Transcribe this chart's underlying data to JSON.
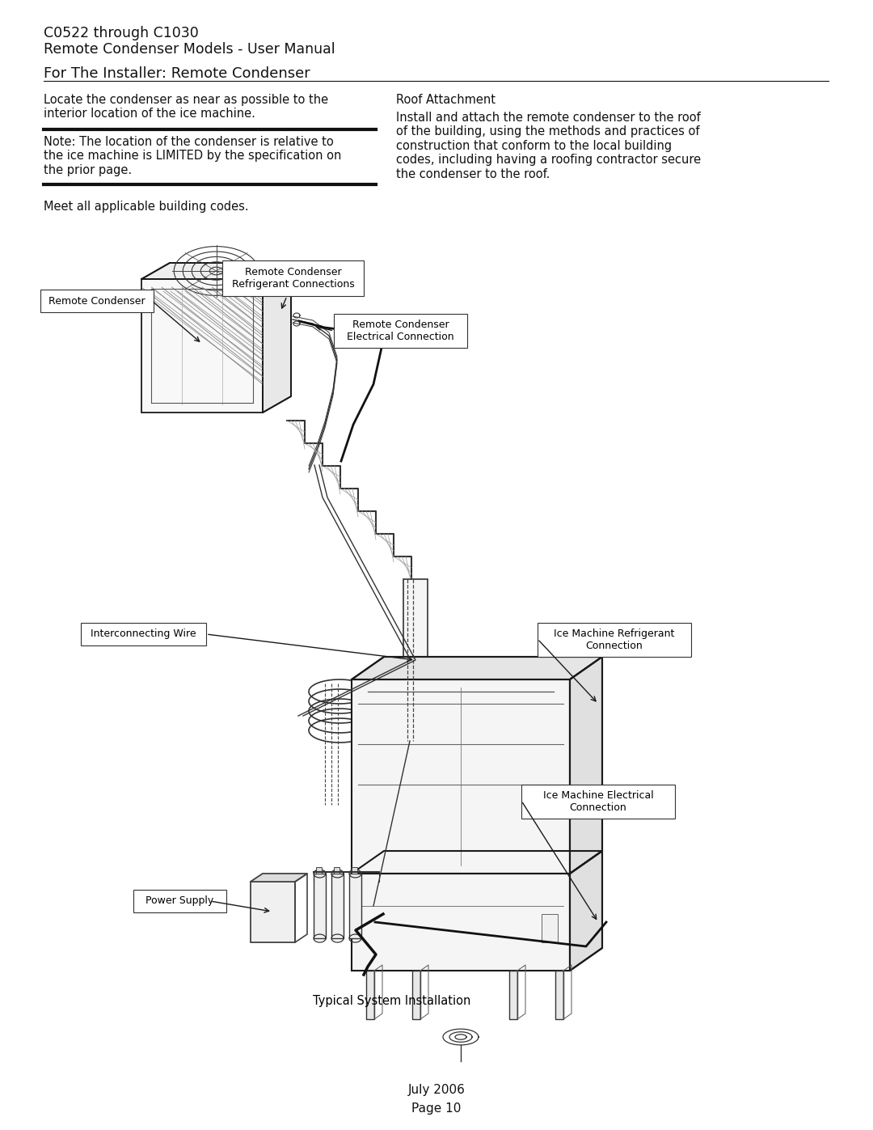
{
  "bg_color": "#ffffff",
  "title_line1": "C0522 through C1030",
  "title_line2": "Remote Condenser Models - User Manual",
  "section_title": "For The Installer: Remote Condenser",
  "left_col_text1": "Locate the condenser as near as possible to the\ninterior location of the ice machine.",
  "right_col_header": "Roof Attachment",
  "right_col_text": "Install and attach the remote condenser to the roof\nof the building, using the methods and practices of\nconstruction that conform to the local building\ncodes, including having a roofing contractor secure\nthe condenser to the roof.",
  "note_text": "Note: The location of the condenser is relative to\nthe ice machine is LIMITED by the specification on\nthe prior page.",
  "meet_text": "Meet all applicable building codes.",
  "diagram_caption": "Typical System Installation",
  "footer_line1": "July 2006",
  "footer_line2": "Page 10",
  "label_remote_condenser": "Remote Condenser",
  "label_rc_refrigerant": "Remote Condenser\nRefrigerant Connections",
  "label_rc_electrical": "Remote Condenser\nElectrical Connection",
  "label_interconnecting": "Interconnecting Wire",
  "label_ice_refrigerant": "Ice Machine Refrigerant\nConnection",
  "label_ice_electrical": "Ice Machine Electrical\nConnection",
  "label_power_supply": "Power Supply"
}
